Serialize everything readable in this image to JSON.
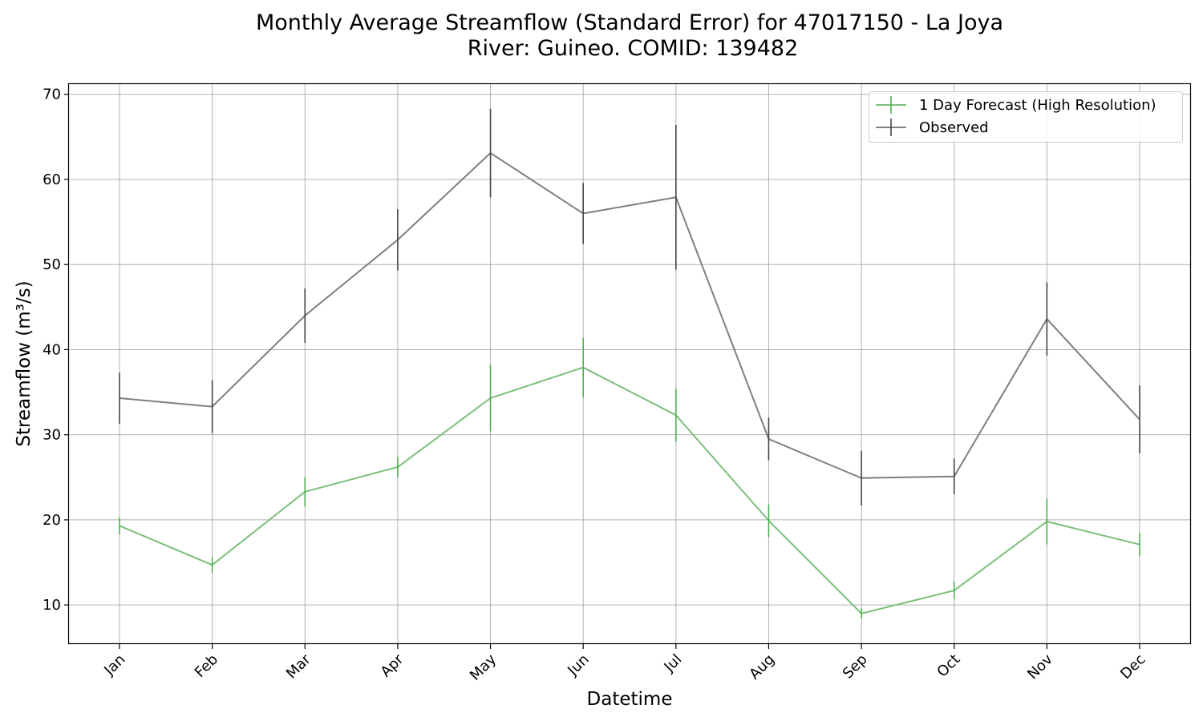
{
  "chart_data": {
    "type": "line",
    "title_line1": "Monthly Average Streamflow (Standard Error) for 47017150 - La Joya",
    "title_line2": "River: Guineo. COMID: 139482",
    "xlabel": "Datetime",
    "ylabel": "Streamflow (m³/s)",
    "categories": [
      "Jan",
      "Feb",
      "Mar",
      "Apr",
      "May",
      "Jun",
      "Jul",
      "Aug",
      "Sep",
      "Oct",
      "Nov",
      "Dec"
    ],
    "ylim": [
      5.4,
      71.2
    ],
    "yticks": [
      10,
      20,
      30,
      40,
      50,
      60,
      70
    ],
    "grid": true,
    "legend_position": "top-right",
    "series": [
      {
        "name": "1 Day Forecast (High Resolution)",
        "color": "#7cbf7c",
        "error_color": "#4caf50",
        "values": [
          19.3,
          14.7,
          23.3,
          26.2,
          34.3,
          37.9,
          32.3,
          19.9,
          9.0,
          11.7,
          19.8,
          17.1
        ],
        "errors": [
          1.0,
          0.9,
          1.7,
          1.2,
          3.9,
          3.5,
          3.1,
          1.9,
          0.6,
          1.0,
          2.7,
          1.4
        ]
      },
      {
        "name": "Observed",
        "color": "#7f7f7f",
        "error_color": "#444444",
        "values": [
          34.3,
          33.3,
          44.0,
          52.9,
          63.1,
          56.0,
          57.9,
          29.5,
          24.9,
          25.1,
          43.6,
          31.8
        ],
        "errors": [
          3.0,
          3.1,
          3.2,
          3.6,
          5.2,
          3.6,
          8.5,
          2.5,
          3.2,
          2.1,
          4.3,
          4.0
        ]
      }
    ]
  }
}
